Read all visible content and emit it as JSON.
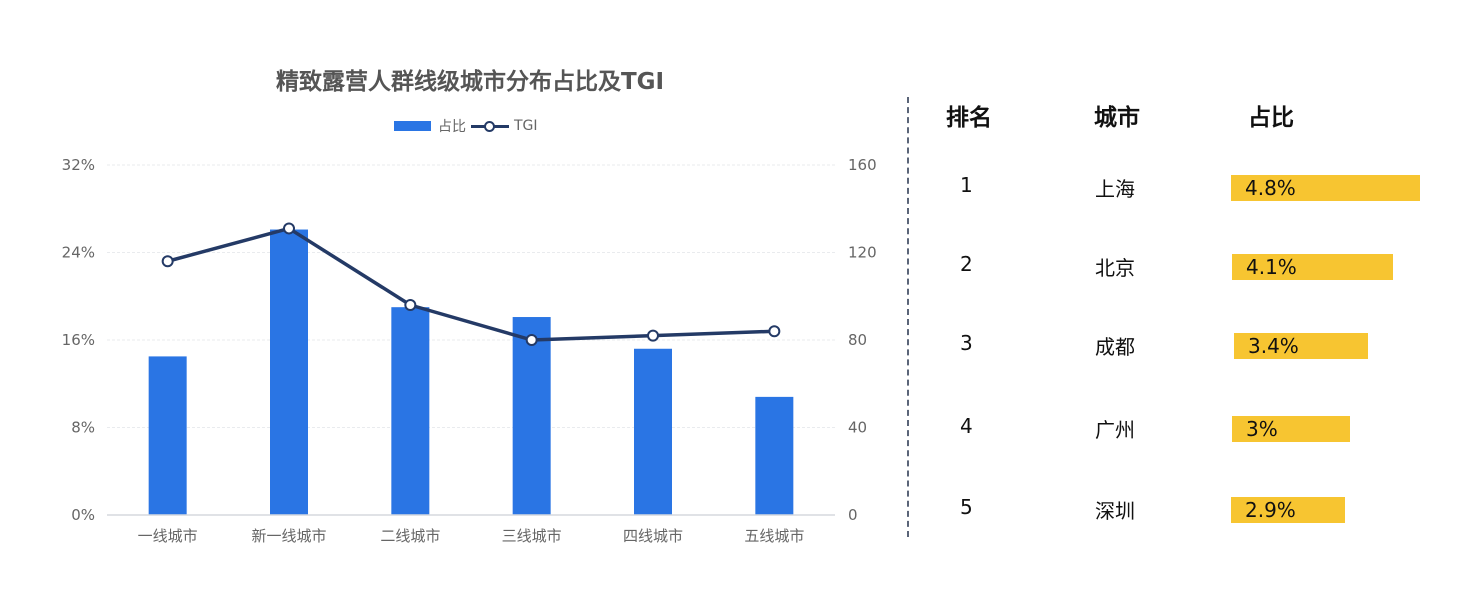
{
  "chart_data": {
    "type": "bar+line",
    "title": "精致露营人群线级城市分布占比及TGI",
    "categories": [
      "一线城市",
      "新一线城市",
      "二线城市",
      "三线城市",
      "四线城市",
      "五线城市"
    ],
    "series": [
      {
        "name": "占比",
        "type": "bar",
        "axis": "left",
        "color": "#2a75e4",
        "values": [
          14.5,
          26.1,
          19.0,
          18.1,
          15.2,
          10.8
        ],
        "unit": "%"
      },
      {
        "name": "TGI",
        "type": "line",
        "axis": "right",
        "color": "#243a66",
        "values": [
          116,
          131,
          96,
          80,
          82,
          84
        ]
      }
    ],
    "left_axis": {
      "ticks": [
        "0%",
        "8%",
        "16%",
        "24%",
        "32%"
      ],
      "range": [
        0,
        32
      ]
    },
    "right_axis": {
      "ticks": [
        "0",
        "40",
        "80",
        "120",
        "160"
      ],
      "range": [
        0,
        160
      ]
    },
    "legend": {
      "position": "top",
      "entries": [
        "占比",
        "TGI"
      ]
    },
    "grid": true,
    "xlabel": "",
    "ylabel": ""
  },
  "ranking_table": {
    "headers": {
      "rank": "排名",
      "city": "城市",
      "share": "占比"
    },
    "bar_color": "#f7c531",
    "rows": [
      {
        "rank": "1",
        "city": "上海",
        "share": "4.8%",
        "value": 4.8
      },
      {
        "rank": "2",
        "city": "北京",
        "share": "4.1%",
        "value": 4.1
      },
      {
        "rank": "3",
        "city": "成都",
        "share": "3.4%",
        "value": 3.4
      },
      {
        "rank": "4",
        "city": "广州",
        "share": "3%",
        "value": 3.0
      },
      {
        "rank": "5",
        "city": "深圳",
        "share": "2.9%",
        "value": 2.9
      }
    ]
  }
}
